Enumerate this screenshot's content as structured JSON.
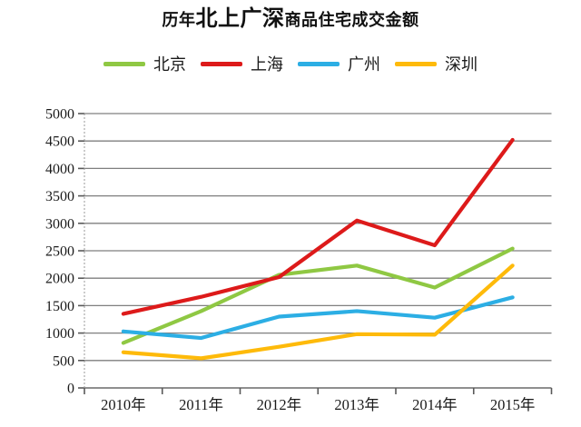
{
  "title": {
    "prefix": "历年",
    "highlight": "北上广深",
    "suffix": "商品住宅成交金额"
  },
  "chart_data": {
    "type": "line",
    "categories": [
      "2010年",
      "2011年",
      "2012年",
      "2013年",
      "2014年",
      "2015年"
    ],
    "series": [
      {
        "name": "北京",
        "color": "#8fc843",
        "values": [
          820,
          1400,
          2060,
          2230,
          1830,
          2540
        ]
      },
      {
        "name": "上海",
        "color": "#dd1a1a",
        "values": [
          1350,
          1660,
          2020,
          3050,
          2600,
          4520
        ]
      },
      {
        "name": "广州",
        "color": "#2caee4",
        "values": [
          1030,
          910,
          1300,
          1400,
          1280,
          1650
        ]
      },
      {
        "name": "深圳",
        "color": "#feba0a",
        "values": [
          650,
          540,
          750,
          980,
          970,
          2230
        ]
      }
    ],
    "ylim": [
      0,
      5000
    ],
    "yticks": [
      0,
      500,
      1000,
      1500,
      2000,
      2500,
      3000,
      3500,
      4000,
      4500,
      5000
    ],
    "grid": true,
    "legend_position": "top",
    "xlabel": "",
    "ylabel": ""
  },
  "colors": {
    "grid": "#7f7f7f",
    "axis": "#595959",
    "text": "#1a1a1a",
    "background": "#ffffff"
  }
}
